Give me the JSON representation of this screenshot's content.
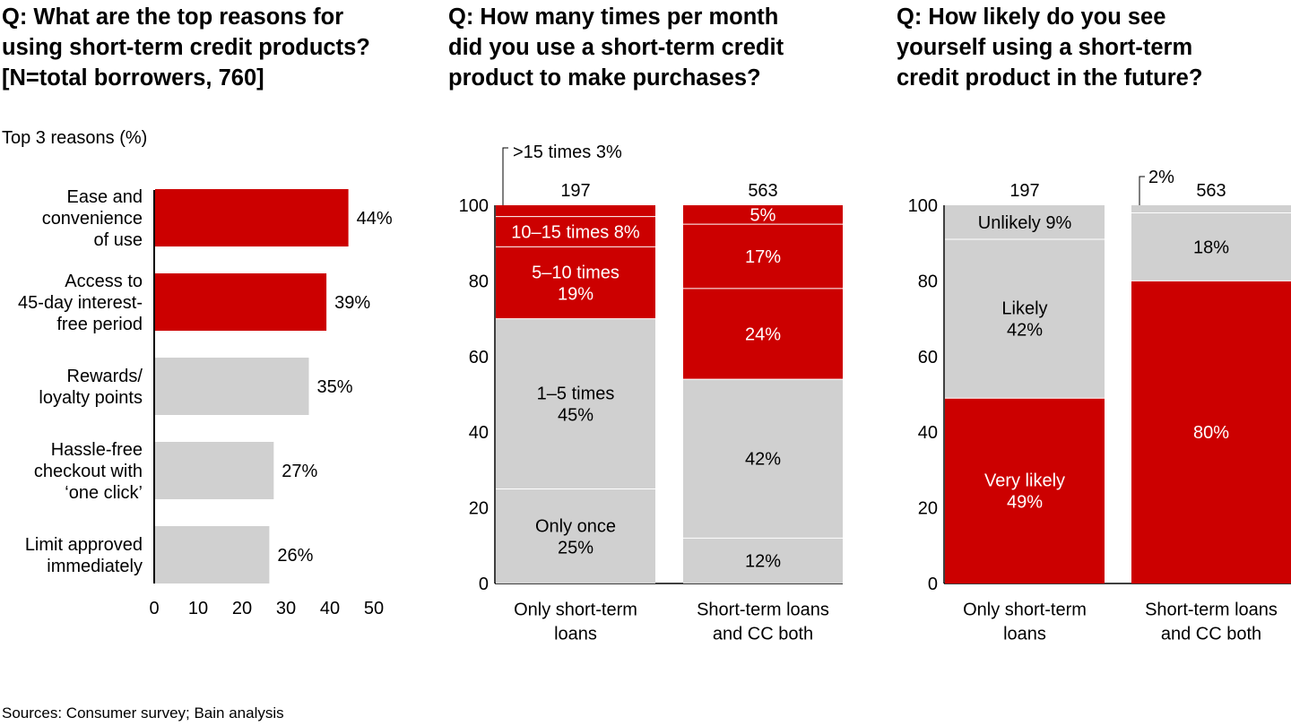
{
  "titles": {
    "panel1": [
      "Q: What are the top reasons for",
      "using short-term credit products?",
      "[N=total borrowers, 760]"
    ],
    "panel2": [
      "Q: How many times per month",
      "did you use a short-term credit",
      "product to make purchases?"
    ],
    "panel3": [
      "Q: How likely do you see",
      "yourself using a short-term",
      "credit product in the future?"
    ]
  },
  "subtitle": "Top 3 reasons (%)",
  "source": "Sources: Consumer survey; Bain analysis",
  "colors": {
    "red": "#cc0000",
    "gray": "#d0d0d0",
    "white": "#ffffff",
    "text": "#000000"
  },
  "chart_data": [
    {
      "type": "bar",
      "orientation": "horizontal",
      "categories": [
        [
          "Ease and",
          "convenience",
          "of use"
        ],
        [
          "Access to",
          "45-day interest-",
          "free period"
        ],
        [
          "Rewards/",
          "loyalty points"
        ],
        [
          "Hassle-free",
          "checkout with",
          "‘one click’"
        ],
        [
          "Limit approved",
          "immediately"
        ]
      ],
      "values": [
        44,
        39,
        35,
        27,
        26
      ],
      "value_labels": [
        "44%",
        "39%",
        "35%",
        "27%",
        "26%"
      ],
      "highlight": [
        true,
        true,
        false,
        false,
        false
      ],
      "xlim": [
        0,
        50
      ],
      "xticks": [
        "0",
        "10",
        "20",
        "30",
        "40",
        "50"
      ],
      "grid": false
    },
    {
      "type": "bar",
      "stacked": true,
      "categories": [
        [
          "Only short-term",
          "loans"
        ],
        [
          "Short-term loans",
          "and CC both"
        ]
      ],
      "totals": [
        "197",
        "563"
      ],
      "ylim": [
        0,
        100
      ],
      "yticks": [
        "0",
        "20",
        "40",
        "60",
        "80",
        "100"
      ],
      "stacks": [
        [
          {
            "value": 25,
            "color": "gray",
            "label": [
              "Only once",
              "25%"
            ]
          },
          {
            "value": 45,
            "color": "gray",
            "label": [
              "1–5 times",
              "45%"
            ]
          },
          {
            "value": 19,
            "color": "red",
            "label": [
              "5–10 times",
              "19%"
            ]
          },
          {
            "value": 8,
            "color": "red",
            "label": [
              "10–15 times 8%"
            ]
          },
          {
            "value": 3,
            "color": "red",
            "label": [],
            "callout": ">15 times 3%"
          }
        ],
        [
          {
            "value": 12,
            "color": "gray",
            "label": [
              "12%"
            ]
          },
          {
            "value": 42,
            "color": "gray",
            "label": [
              "42%"
            ]
          },
          {
            "value": 24,
            "color": "red",
            "label": [
              "24%"
            ]
          },
          {
            "value": 17,
            "color": "red",
            "label": [
              "17%"
            ]
          },
          {
            "value": 5,
            "color": "red",
            "label": [
              "5%"
            ]
          }
        ]
      ]
    },
    {
      "type": "bar",
      "stacked": true,
      "categories": [
        [
          "Only short-term",
          "loans"
        ],
        [
          "Short-term loans",
          "and CC both"
        ]
      ],
      "totals": [
        "197",
        "563"
      ],
      "ylim": [
        0,
        100
      ],
      "yticks": [
        "0",
        "20",
        "40",
        "60",
        "80",
        "100"
      ],
      "stacks": [
        [
          {
            "value": 49,
            "color": "red",
            "label": [
              "Very likely",
              "49%"
            ]
          },
          {
            "value": 42,
            "color": "gray",
            "label": [
              "Likely",
              "42%"
            ]
          },
          {
            "value": 9,
            "color": "gray",
            "label": [
              "Unlikely 9%"
            ]
          }
        ],
        [
          {
            "value": 80,
            "color": "red",
            "label": [
              "80%"
            ]
          },
          {
            "value": 18,
            "color": "gray",
            "label": [
              "18%"
            ]
          },
          {
            "value": 2,
            "color": "gray",
            "label": [],
            "callout": "2%"
          }
        ]
      ]
    }
  ]
}
